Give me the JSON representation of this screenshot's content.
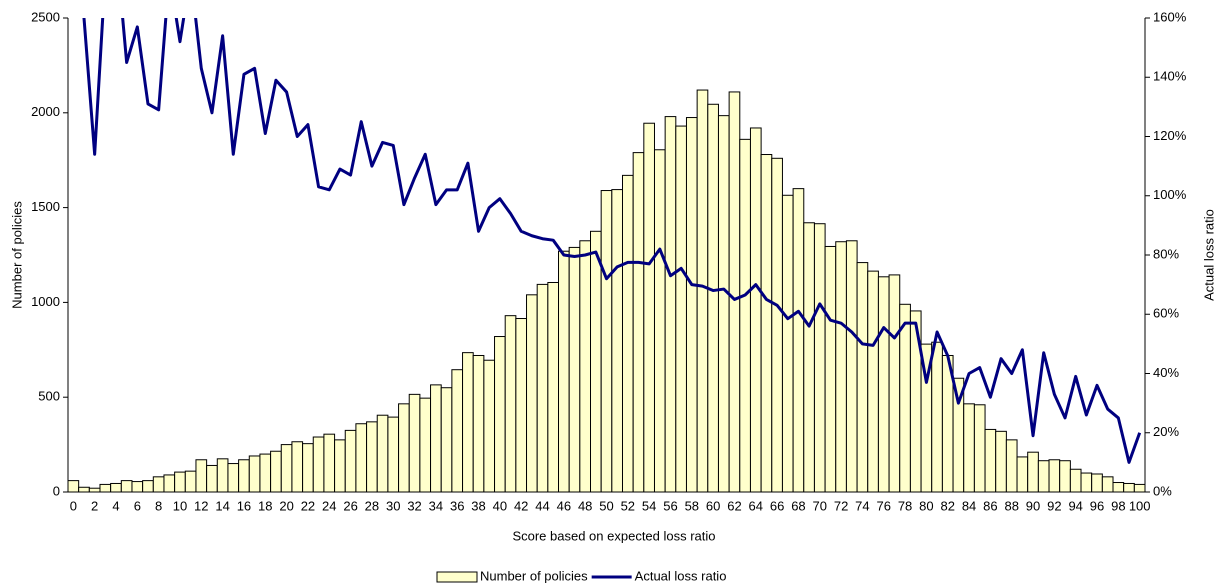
{
  "chart_data": {
    "type": "bar",
    "x_label": "Score based on expected loss ratio",
    "y_label": "Number of policies",
    "y2_label": "Actual loss ratio",
    "categories": [
      0,
      null,
      2,
      null,
      4,
      null,
      6,
      null,
      8,
      null,
      10,
      null,
      12,
      null,
      14,
      null,
      16,
      null,
      18,
      null,
      20,
      null,
      22,
      null,
      24,
      null,
      26,
      null,
      28,
      null,
      30,
      null,
      32,
      null,
      34,
      null,
      36,
      null,
      38,
      null,
      40,
      null,
      42,
      null,
      44,
      null,
      46,
      null,
      48,
      null,
      50,
      null,
      52,
      null,
      54,
      null,
      56,
      null,
      58,
      null,
      60,
      null,
      62,
      null,
      64,
      null,
      66,
      null,
      68,
      null,
      70,
      null,
      72,
      null,
      74,
      null,
      76,
      null,
      78,
      null,
      80,
      null,
      82,
      null,
      84,
      null,
      86,
      null,
      88,
      null,
      90,
      null,
      92,
      null,
      94,
      null,
      96,
      null,
      98,
      null,
      100
    ],
    "ylim": [
      0,
      2500
    ],
    "yticks": [
      0,
      500,
      1000,
      1500,
      2000,
      2500
    ],
    "y2lim": [
      0,
      160
    ],
    "y2ticks": [
      {
        "value": 0,
        "label": "0%"
      },
      {
        "value": 20,
        "label": "20%"
      },
      {
        "value": 40,
        "label": "40%"
      },
      {
        "value": 60,
        "label": "60%"
      },
      {
        "value": 80,
        "label": "80%"
      },
      {
        "value": 100,
        "label": "100%"
      },
      {
        "value": 120,
        "label": "120%"
      },
      {
        "value": 140,
        "label": "140%"
      },
      {
        "value": 160,
        "label": "160%"
      }
    ],
    "legend": "bottom",
    "series": [
      {
        "name": "Number of policies",
        "type": "bar",
        "color": "#ffffcc",
        "edgecolor": "#000000",
        "values": [
          60,
          25,
          20,
          40,
          45,
          60,
          55,
          60,
          80,
          90,
          105,
          110,
          170,
          140,
          175,
          150,
          170,
          190,
          200,
          215,
          250,
          265,
          255,
          290,
          305,
          275,
          325,
          360,
          370,
          405,
          395,
          465,
          515,
          495,
          565,
          550,
          645,
          735,
          720,
          695,
          820,
          930,
          915,
          1040,
          1095,
          1105,
          1270,
          1290,
          1325,
          1375,
          1590,
          1595,
          1670,
          1790,
          1945,
          1805,
          1980,
          1930,
          1975,
          2120,
          2045,
          1985,
          2110,
          1860,
          1920,
          1780,
          1760,
          1565,
          1600,
          1420,
          1415,
          1295,
          1320,
          1325,
          1210,
          1165,
          1135,
          1145,
          990,
          955,
          780,
          790,
          720,
          600,
          465,
          460,
          330,
          320,
          275,
          185,
          210,
          165,
          170,
          165,
          120,
          100,
          95,
          80,
          50,
          45,
          40
        ]
      },
      {
        "name": "Actual loss ratio",
        "type": "line",
        "axis": "y2",
        "color": "#000080",
        "values": [
          175,
          160,
          114,
          175,
          185,
          145,
          157,
          131,
          129,
          175,
          152,
          175,
          143,
          128,
          154,
          114,
          141,
          143,
          121,
          139,
          135,
          120,
          124,
          103,
          102,
          109,
          107,
          125,
          110,
          118,
          117,
          97,
          106,
          114,
          97,
          102,
          102,
          111,
          88,
          96,
          99,
          94,
          88,
          86.5,
          85.5,
          85,
          80,
          79.5,
          80,
          81,
          72,
          76,
          77.5,
          77.5,
          77,
          82,
          73,
          75.5,
          70,
          69.5,
          68,
          68.5,
          65,
          66.5,
          70,
          65,
          63,
          58.5,
          61,
          56,
          63.5,
          58,
          57,
          54,
          50,
          49.5,
          55.5,
          52,
          57,
          57,
          37,
          54,
          46,
          30,
          40,
          42,
          32,
          45,
          40,
          48,
          19,
          47,
          33,
          25,
          39,
          26,
          36,
          28,
          25,
          10,
          20
        ]
      }
    ]
  }
}
